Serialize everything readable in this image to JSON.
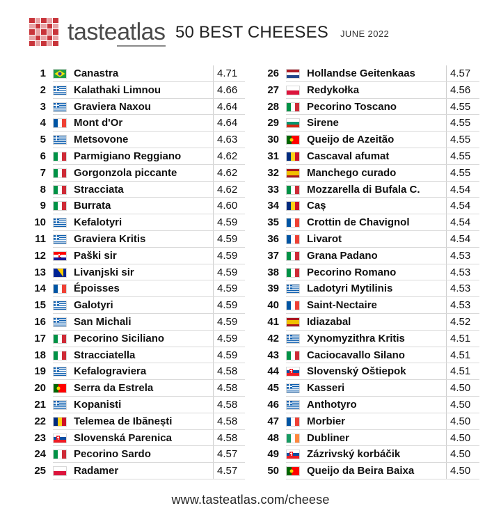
{
  "header": {
    "brand_prefix": "taste",
    "brand_suffix": "atlas",
    "title": "50 BEST CHEESES",
    "subtitle": "JUNE 2022"
  },
  "footer": {
    "url": "www.tasteatlas.com/cheese"
  },
  "flag_colors": {
    "brazil": [
      "#229e45",
      "#f8e509",
      "#2b49a3"
    ],
    "greece": [
      "#0d5eaf",
      "#ffffff"
    ],
    "france": [
      "#0055a4",
      "#ffffff",
      "#ef4135"
    ],
    "italy": [
      "#009246",
      "#ffffff",
      "#ce2b37"
    ],
    "croatia": [
      "#ff0000",
      "#ffffff",
      "#171796"
    ],
    "bosnia": [
      "#002395",
      "#fecb00"
    ],
    "portugal": [
      "#006600",
      "#ff0000"
    ],
    "romania": [
      "#002b7f",
      "#fcd116",
      "#ce1126"
    ],
    "slovakia": [
      "#ffffff",
      "#0b4ea2",
      "#ee1c25"
    ],
    "poland": [
      "#ffffff",
      "#dc143c"
    ],
    "netherlands": [
      "#ae1c28",
      "#ffffff",
      "#21468b"
    ],
    "bulgaria": [
      "#ffffff",
      "#00966e",
      "#d62612"
    ],
    "spain": [
      "#aa151b",
      "#f1bf00"
    ],
    "ireland": [
      "#169b62",
      "#ffffff",
      "#ff883e"
    ]
  },
  "left_column": [
    {
      "rank": "1",
      "flag": "brazil",
      "flag_icon": "brazil-flag-icon",
      "name": "Canastra",
      "score": "4.71"
    },
    {
      "rank": "2",
      "flag": "greece",
      "flag_icon": "greece-flag-icon",
      "name": "Kalathaki Limnou",
      "score": "4.66"
    },
    {
      "rank": "3",
      "flag": "greece",
      "flag_icon": "greece-flag-icon",
      "name": "Graviera Naxou",
      "score": "4.64"
    },
    {
      "rank": "4",
      "flag": "france",
      "flag_icon": "france-flag-icon",
      "name": "Mont d'Or",
      "score": "4.64"
    },
    {
      "rank": "5",
      "flag": "greece",
      "flag_icon": "greece-flag-icon",
      "name": "Metsovone",
      "score": "4.63"
    },
    {
      "rank": "6",
      "flag": "italy",
      "flag_icon": "italy-flag-icon",
      "name": "Parmigiano Reggiano",
      "score": "4.62"
    },
    {
      "rank": "7",
      "flag": "italy",
      "flag_icon": "italy-flag-icon",
      "name": "Gorgonzola piccante",
      "score": "4.62"
    },
    {
      "rank": "8",
      "flag": "italy",
      "flag_icon": "italy-flag-icon",
      "name": "Stracciata",
      "score": "4.62"
    },
    {
      "rank": "9",
      "flag": "italy",
      "flag_icon": "italy-flag-icon",
      "name": "Burrata",
      "score": "4.60"
    },
    {
      "rank": "10",
      "flag": "greece",
      "flag_icon": "greece-flag-icon",
      "name": "Kefalotyri",
      "score": "4.59"
    },
    {
      "rank": "11",
      "flag": "greece",
      "flag_icon": "greece-flag-icon",
      "name": "Graviera Kritis",
      "score": "4.59"
    },
    {
      "rank": "12",
      "flag": "croatia",
      "flag_icon": "croatia-flag-icon",
      "name": "Paški sir",
      "score": "4.59"
    },
    {
      "rank": "13",
      "flag": "bosnia",
      "flag_icon": "bosnia-flag-icon",
      "name": "Livanjski sir",
      "score": "4.59"
    },
    {
      "rank": "14",
      "flag": "france",
      "flag_icon": "france-flag-icon",
      "name": "Époisses",
      "score": "4.59"
    },
    {
      "rank": "15",
      "flag": "greece",
      "flag_icon": "greece-flag-icon",
      "name": "Galotyri",
      "score": "4.59"
    },
    {
      "rank": "16",
      "flag": "greece",
      "flag_icon": "greece-flag-icon",
      "name": "San Michali",
      "score": "4.59"
    },
    {
      "rank": "17",
      "flag": "italy",
      "flag_icon": "italy-flag-icon",
      "name": "Pecorino Siciliano",
      "score": "4.59"
    },
    {
      "rank": "18",
      "flag": "italy",
      "flag_icon": "italy-flag-icon",
      "name": "Stracciatella",
      "score": "4.59"
    },
    {
      "rank": "19",
      "flag": "greece",
      "flag_icon": "greece-flag-icon",
      "name": "Kefalograviera",
      "score": "4.58"
    },
    {
      "rank": "20",
      "flag": "portugal",
      "flag_icon": "portugal-flag-icon",
      "name": "Serra da Estrela",
      "score": "4.58"
    },
    {
      "rank": "21",
      "flag": "greece",
      "flag_icon": "greece-flag-icon",
      "name": "Kopanisti",
      "score": "4.58"
    },
    {
      "rank": "22",
      "flag": "romania",
      "flag_icon": "romania-flag-icon",
      "name": "Telemea de Ibănești",
      "score": "4.58"
    },
    {
      "rank": "23",
      "flag": "slovakia",
      "flag_icon": "slovakia-flag-icon",
      "name": "Slovenská Parenica",
      "score": "4.58"
    },
    {
      "rank": "24",
      "flag": "italy",
      "flag_icon": "italy-flag-icon",
      "name": "Pecorino Sardo",
      "score": "4.57"
    },
    {
      "rank": "25",
      "flag": "poland",
      "flag_icon": "poland-flag-icon",
      "name": "Radamer",
      "score": "4.57"
    }
  ],
  "right_column": [
    {
      "rank": "26",
      "flag": "netherlands",
      "flag_icon": "netherlands-flag-icon",
      "name": "Hollandse Geitenkaas",
      "score": "4.57"
    },
    {
      "rank": "27",
      "flag": "poland",
      "flag_icon": "poland-flag-icon",
      "name": "Redykołka",
      "score": "4.56"
    },
    {
      "rank": "28",
      "flag": "italy",
      "flag_icon": "italy-flag-icon",
      "name": "Pecorino Toscano",
      "score": "4.55"
    },
    {
      "rank": "29",
      "flag": "bulgaria",
      "flag_icon": "bulgaria-flag-icon",
      "name": "Sirene",
      "score": "4.55"
    },
    {
      "rank": "30",
      "flag": "portugal",
      "flag_icon": "portugal-flag-icon",
      "name": "Queijo de Azeitão",
      "score": "4.55"
    },
    {
      "rank": "31",
      "flag": "romania",
      "flag_icon": "romania-flag-icon",
      "name": "Cascaval afumat",
      "score": "4.55"
    },
    {
      "rank": "32",
      "flag": "spain",
      "flag_icon": "spain-flag-icon",
      "name": "Manchego curado",
      "score": "4.55"
    },
    {
      "rank": "33",
      "flag": "italy",
      "flag_icon": "italy-flag-icon",
      "name": "Mozzarella di Bufala C.",
      "score": "4.54"
    },
    {
      "rank": "34",
      "flag": "romania",
      "flag_icon": "romania-flag-icon",
      "name": "Caș",
      "score": "4.54"
    },
    {
      "rank": "35",
      "flag": "france",
      "flag_icon": "france-flag-icon",
      "name": "Crottin de Chavignol",
      "score": "4.54"
    },
    {
      "rank": "36",
      "flag": "france",
      "flag_icon": "france-flag-icon",
      "name": "Livarot",
      "score": "4.54"
    },
    {
      "rank": "37",
      "flag": "italy",
      "flag_icon": "italy-flag-icon",
      "name": "Grana Padano",
      "score": "4.53"
    },
    {
      "rank": "38",
      "flag": "italy",
      "flag_icon": "italy-flag-icon",
      "name": "Pecorino Romano",
      "score": "4.53"
    },
    {
      "rank": "39",
      "flag": "greece",
      "flag_icon": "greece-flag-icon",
      "name": "Ladotyri Mytilinis",
      "score": "4.53"
    },
    {
      "rank": "40",
      "flag": "france",
      "flag_icon": "france-flag-icon",
      "name": "Saint-Nectaire",
      "score": "4.53"
    },
    {
      "rank": "41",
      "flag": "spain",
      "flag_icon": "spain-flag-icon",
      "name": "Idiazabal",
      "score": "4.52"
    },
    {
      "rank": "42",
      "flag": "greece",
      "flag_icon": "greece-flag-icon",
      "name": "Xynomyzithra Kritis",
      "score": "4.51"
    },
    {
      "rank": "43",
      "flag": "italy",
      "flag_icon": "italy-flag-icon",
      "name": "Caciocavallo Silano",
      "score": "4.51"
    },
    {
      "rank": "44",
      "flag": "slovakia",
      "flag_icon": "slovakia-flag-icon",
      "name": "Slovenský Oštiepok",
      "score": "4.51"
    },
    {
      "rank": "45",
      "flag": "greece",
      "flag_icon": "greece-flag-icon",
      "name": "Kasseri",
      "score": "4.50"
    },
    {
      "rank": "46",
      "flag": "greece",
      "flag_icon": "greece-flag-icon",
      "name": "Anthotyro",
      "score": "4.50"
    },
    {
      "rank": "47",
      "flag": "france",
      "flag_icon": "france-flag-icon",
      "name": "Morbier",
      "score": "4.50"
    },
    {
      "rank": "48",
      "flag": "ireland",
      "flag_icon": "ireland-flag-icon",
      "name": "Dubliner",
      "score": "4.50"
    },
    {
      "rank": "49",
      "flag": "slovakia",
      "flag_icon": "slovakia-flag-icon",
      "name": "Zázrivský korbáčik",
      "score": "4.50"
    },
    {
      "rank": "50",
      "flag": "portugal",
      "flag_icon": "portugal-flag-icon",
      "name": "Queijo da Beira Baixa",
      "score": "4.50"
    }
  ]
}
